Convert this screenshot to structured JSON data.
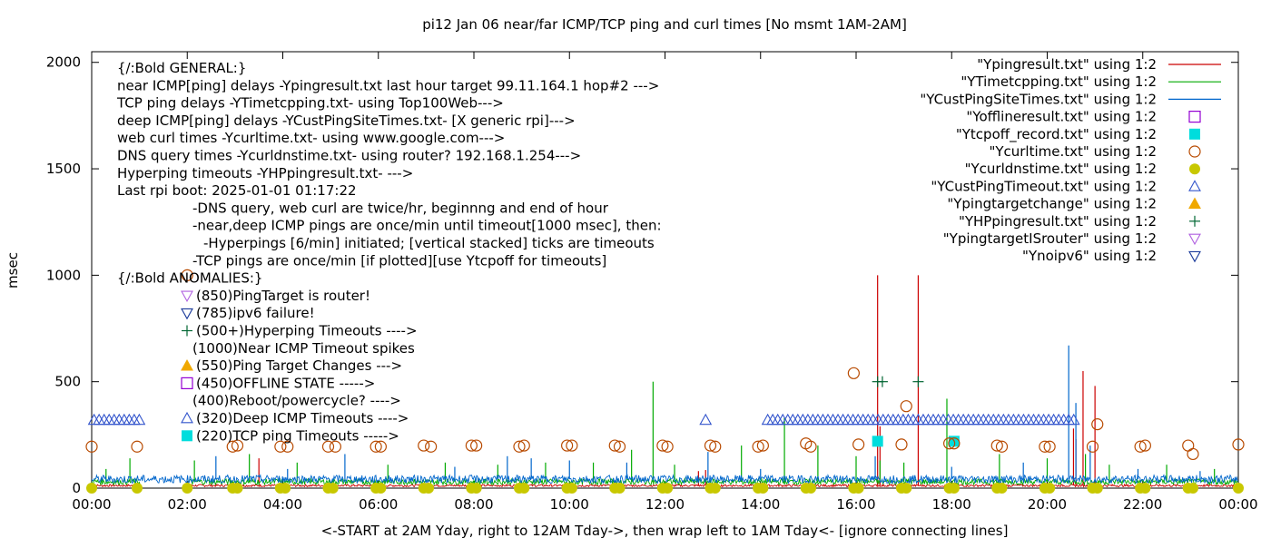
{
  "chart_data": {
    "type": "line",
    "title": "pi12 Jan 06  near/far ICMP/TCP ping and curl times [No msmt 1AM-2AM]",
    "ylabel": "msec",
    "xlabel": "<-START at 2AM Yday, right to 12AM Tday->, then wrap left to 1AM Tday<- [ignore connecting lines]",
    "xlim": [
      0,
      24
    ],
    "ylim": [
      0,
      2050
    ],
    "yticks": [
      0,
      500,
      1000,
      1500,
      2000
    ],
    "xticks": [
      {
        "v": 0,
        "label": "00:00"
      },
      {
        "v": 2,
        "label": "02:00"
      },
      {
        "v": 4,
        "label": "04:00"
      },
      {
        "v": 6,
        "label": "06:00"
      },
      {
        "v": 8,
        "label": "08:00"
      },
      {
        "v": 10,
        "label": "10:00"
      },
      {
        "v": 12,
        "label": "12:00"
      },
      {
        "v": 14,
        "label": "14:00"
      },
      {
        "v": 16,
        "label": "16:00"
      },
      {
        "v": 18,
        "label": "18:00"
      },
      {
        "v": 20,
        "label": "20:00"
      },
      {
        "v": 22,
        "label": "22:00"
      },
      {
        "v": 24,
        "label": "00:00"
      }
    ],
    "grid": false,
    "legend_position": "top-right",
    "notes": [
      {
        "text": "{/:Bold GENERAL:}",
        "indent": 0
      },
      {
        "text": "near ICMP[ping] delays -Ypingresult.txt last hour target 99.11.164.1 hop#2 --->",
        "indent": 0
      },
      {
        "text": "TCP ping delays -YTimetcpping.txt- using Top100Web--->",
        "indent": 0
      },
      {
        "text": "deep ICMP[ping] delays -YCustPingSiteTimes.txt- [X generic rpi]--->",
        "indent": 0
      },
      {
        "text": "web curl times -Ycurltime.txt- using www.google.com--->",
        "indent": 0
      },
      {
        "text": "DNS query times -Ycurldnstime.txt- using router? 192.168.1.254--->",
        "indent": 0
      },
      {
        "text": "Hyperping timeouts -YHPpingresult.txt- --->",
        "indent": 0
      },
      {
        "text": "Last rpi boot: 2025-01-01 01:17:22",
        "indent": 0
      },
      {
        "text": "-DNS query, web curl are twice/hr, beginnng and end of hour",
        "indent": 1
      },
      {
        "text": "-near,deep ICMP pings are once/min until timeout[1000 msec], then:",
        "indent": 1
      },
      {
        "text": "-Hyperpings [6/min] initiated; [vertical stacked] ticks are timeouts",
        "indent": 2
      },
      {
        "text": "-TCP pings are once/min [if plotted][use Ytcpoff for timeouts]",
        "indent": 1
      },
      {
        "text": "{/:Bold ANOMALIES:}",
        "indent": 0
      },
      {
        "text": "(850)PingTarget is router!",
        "indent": 1,
        "marker": "tri-down-violet"
      },
      {
        "text": "(785)ipv6 failure!",
        "indent": 1,
        "marker": "tri-down-blue"
      },
      {
        "text": "(500+)Hyperping Timeouts ---->",
        "indent": 1,
        "marker": "plus-green"
      },
      {
        "text": "(1000)Near ICMP Timeout spikes",
        "indent": 1
      },
      {
        "text": "(550)Ping Target Changes --->",
        "indent": 1,
        "marker": "tri-up-orange"
      },
      {
        "text": "(450)OFFLINE STATE ----->",
        "indent": 1,
        "marker": "square-purple"
      },
      {
        "text": "(400)Reboot/powercycle? ---->",
        "indent": 1
      },
      {
        "text": "(320)Deep ICMP Timeouts ---->",
        "indent": 1,
        "marker": "tri-up-blue"
      },
      {
        "text": "(220)TCP ping Timeouts ----->",
        "indent": 1,
        "marker": "square-cyan"
      }
    ],
    "legend": [
      {
        "label": "\"Ypingresult.txt\" using 1:2",
        "style": "line",
        "color": "#cc0000"
      },
      {
        "label": "\"YTimetcpping.txt\" using 1:2",
        "style": "line",
        "color": "#00aa00"
      },
      {
        "label": "\"YCustPingSiteTimes.txt\" using 1:2",
        "style": "line",
        "color": "#0066cc"
      },
      {
        "label": "\"Yofflineresult.txt\" using 1:2",
        "style": "square-open",
        "color": "#9400d3"
      },
      {
        "label": "\"Ytcpoff_record.txt\" using 1:2",
        "style": "square-filled",
        "color": "#00dddd"
      },
      {
        "label": "\"Ycurltime.txt\" using 1:2",
        "style": "circle-open",
        "color": "#b84a00"
      },
      {
        "label": "\"Ycurldnstime.txt\" using 1:2",
        "style": "circle-filled",
        "color": "#c8c800"
      },
      {
        "label": "\"YCustPingTimeout.txt\" using 1:2",
        "style": "tri-up-open",
        "color": "#3355cc"
      },
      {
        "label": "\"Ypingtargetchange\" using 1:2",
        "style": "tri-up-filled",
        "color": "#f0a800"
      },
      {
        "label": "\"YHPpingresult.txt\" using 1:2",
        "style": "plus",
        "color": "#006633"
      },
      {
        "label": "\"YpingtargetISrouter\" using 1:2",
        "style": "tri-down-open",
        "color": "#b060e0"
      },
      {
        "label": "\"Ynoipv6\" using 1:2",
        "style": "tri-down-open",
        "color": "#1a3a9a"
      }
    ],
    "series": [
      {
        "name": "\"Ypingresult.txt\" using 1:2",
        "color": "#cc0000",
        "type": "line",
        "baseline": 12,
        "spikes": [
          {
            "x": 3.5,
            "y": 140
          },
          {
            "x": 12.7,
            "y": 80
          },
          {
            "x": 12.85,
            "y": 85
          },
          {
            "x": 16.45,
            "y": 1000
          },
          {
            "x": 16.5,
            "y": 290
          },
          {
            "x": 17.3,
            "y": 1000
          },
          {
            "x": 20.55,
            "y": 280
          },
          {
            "x": 20.75,
            "y": 550
          },
          {
            "x": 21.0,
            "y": 480
          },
          {
            "x": 20.6,
            "y": 230
          }
        ]
      },
      {
        "name": "\"YTimetcpping.txt\" using 1:2",
        "color": "#00aa00",
        "type": "line",
        "baseline": 30,
        "spikes": [
          {
            "x": 0.3,
            "y": 90
          },
          {
            "x": 0.8,
            "y": 140
          },
          {
            "x": 2.15,
            "y": 130
          },
          {
            "x": 3.3,
            "y": 160
          },
          {
            "x": 4.3,
            "y": 120
          },
          {
            "x": 6.2,
            "y": 110
          },
          {
            "x": 7.4,
            "y": 120
          },
          {
            "x": 8.5,
            "y": 110
          },
          {
            "x": 9.5,
            "y": 120
          },
          {
            "x": 10.5,
            "y": 120
          },
          {
            "x": 11.3,
            "y": 180
          },
          {
            "x": 11.75,
            "y": 500
          },
          {
            "x": 12.2,
            "y": 110
          },
          {
            "x": 13.6,
            "y": 200
          },
          {
            "x": 14.5,
            "y": 330
          },
          {
            "x": 15.2,
            "y": 200
          },
          {
            "x": 16.0,
            "y": 150
          },
          {
            "x": 16.5,
            "y": 130
          },
          {
            "x": 17.0,
            "y": 120
          },
          {
            "x": 17.9,
            "y": 420
          },
          {
            "x": 19.0,
            "y": 160
          },
          {
            "x": 20.0,
            "y": 140
          },
          {
            "x": 20.8,
            "y": 160
          },
          {
            "x": 21.3,
            "y": 110
          },
          {
            "x": 22.5,
            "y": 110
          },
          {
            "x": 23.5,
            "y": 90
          }
        ]
      },
      {
        "name": "\"YCustPingSiteTimes.txt\" using 1:2",
        "color": "#0066cc",
        "type": "line",
        "baseline": 42,
        "spikes": [
          {
            "x": 1.5,
            "y": 40
          },
          {
            "x": 2.6,
            "y": 150
          },
          {
            "x": 4.1,
            "y": 90
          },
          {
            "x": 5.3,
            "y": 160
          },
          {
            "x": 7.6,
            "y": 100
          },
          {
            "x": 8.7,
            "y": 150
          },
          {
            "x": 9.2,
            "y": 140
          },
          {
            "x": 10.0,
            "y": 130
          },
          {
            "x": 11.2,
            "y": 120
          },
          {
            "x": 12.9,
            "y": 170
          },
          {
            "x": 14.0,
            "y": 90
          },
          {
            "x": 16.4,
            "y": 150
          },
          {
            "x": 18.0,
            "y": 100
          },
          {
            "x": 19.5,
            "y": 120
          },
          {
            "x": 20.45,
            "y": 670
          },
          {
            "x": 20.6,
            "y": 400
          },
          {
            "x": 20.9,
            "y": 200
          },
          {
            "x": 21.9,
            "y": 90
          },
          {
            "x": 23.2,
            "y": 80
          }
        ]
      },
      {
        "name": "\"Ytcpoff_record.txt\" using 1:2",
        "color": "#00dddd",
        "type": "square-filled",
        "points": [
          [
            16.45,
            220
          ],
          [
            18.05,
            220
          ]
        ]
      },
      {
        "name": "\"Ycurltime.txt\" using 1:2",
        "color": "#b84a00",
        "type": "circle-open",
        "points": [
          [
            0.0,
            195
          ],
          [
            0.95,
            195
          ],
          [
            2.0,
            1000
          ],
          [
            2.95,
            195
          ],
          [
            3.05,
            200
          ],
          [
            3.95,
            195
          ],
          [
            4.1,
            195
          ],
          [
            4.95,
            195
          ],
          [
            5.1,
            195
          ],
          [
            5.95,
            195
          ],
          [
            6.05,
            195
          ],
          [
            6.95,
            200
          ],
          [
            7.1,
            195
          ],
          [
            7.95,
            200
          ],
          [
            8.05,
            200
          ],
          [
            8.95,
            195
          ],
          [
            9.05,
            200
          ],
          [
            9.95,
            200
          ],
          [
            10.05,
            200
          ],
          [
            10.95,
            200
          ],
          [
            11.05,
            195
          ],
          [
            11.95,
            200
          ],
          [
            12.05,
            195
          ],
          [
            12.95,
            200
          ],
          [
            13.05,
            195
          ],
          [
            13.95,
            195
          ],
          [
            14.05,
            200
          ],
          [
            14.95,
            210
          ],
          [
            15.05,
            195
          ],
          [
            15.95,
            540
          ],
          [
            16.05,
            205
          ],
          [
            16.95,
            205
          ],
          [
            17.05,
            385
          ],
          [
            17.95,
            210
          ],
          [
            18.05,
            210
          ],
          [
            18.95,
            200
          ],
          [
            19.05,
            195
          ],
          [
            19.95,
            195
          ],
          [
            20.05,
            195
          ],
          [
            20.95,
            195
          ],
          [
            21.05,
            300
          ],
          [
            21.95,
            195
          ],
          [
            22.05,
            200
          ],
          [
            22.95,
            200
          ],
          [
            23.05,
            160
          ],
          [
            24.0,
            205
          ]
        ]
      },
      {
        "name": "\"Ycurldnstime.txt\" using 1:2",
        "color": "#c8c800",
        "type": "circle-filled",
        "points": [
          [
            0.0,
            0
          ],
          [
            0.95,
            0
          ],
          [
            2.0,
            0
          ],
          [
            2.95,
            0
          ],
          [
            3.05,
            0
          ],
          [
            3.95,
            0
          ],
          [
            4.05,
            0
          ],
          [
            4.95,
            0
          ],
          [
            5.05,
            0
          ],
          [
            5.95,
            0
          ],
          [
            6.05,
            0
          ],
          [
            6.95,
            0
          ],
          [
            7.05,
            0
          ],
          [
            7.95,
            0
          ],
          [
            8.05,
            0
          ],
          [
            8.95,
            0
          ],
          [
            9.05,
            0
          ],
          [
            9.95,
            0
          ],
          [
            10.05,
            0
          ],
          [
            10.95,
            0
          ],
          [
            11.05,
            0
          ],
          [
            11.95,
            0
          ],
          [
            12.05,
            0
          ],
          [
            12.95,
            0
          ],
          [
            13.05,
            0
          ],
          [
            13.95,
            0
          ],
          [
            14.05,
            0
          ],
          [
            14.95,
            0
          ],
          [
            15.05,
            0
          ],
          [
            15.95,
            0
          ],
          [
            16.05,
            0
          ],
          [
            16.95,
            0
          ],
          [
            17.05,
            0
          ],
          [
            17.95,
            0
          ],
          [
            18.05,
            0
          ],
          [
            18.95,
            0
          ],
          [
            19.05,
            0
          ],
          [
            19.95,
            0
          ],
          [
            20.05,
            0
          ],
          [
            20.95,
            0
          ],
          [
            21.05,
            0
          ],
          [
            21.95,
            0
          ],
          [
            22.05,
            0
          ],
          [
            22.95,
            0
          ],
          [
            23.05,
            0
          ],
          [
            24.0,
            0
          ]
        ]
      },
      {
        "name": "\"YCustPingTimeout.txt\" using 1:2",
        "color": "#3355cc",
        "type": "tri-up-open",
        "runs": [
          {
            "from": 0.05,
            "to": 1.0,
            "step": 0.105,
            "y": 320
          },
          {
            "from": 14.15,
            "to": 20.6,
            "step": 0.105,
            "y": 320
          }
        ],
        "points": [
          [
            12.85,
            320
          ]
        ]
      },
      {
        "name": "\"YHPpingresult.txt\" using 1:2",
        "color": "#006633",
        "type": "plus",
        "points": [
          [
            16.45,
            500
          ],
          [
            16.55,
            500
          ],
          [
            17.3,
            500
          ]
        ]
      }
    ]
  }
}
